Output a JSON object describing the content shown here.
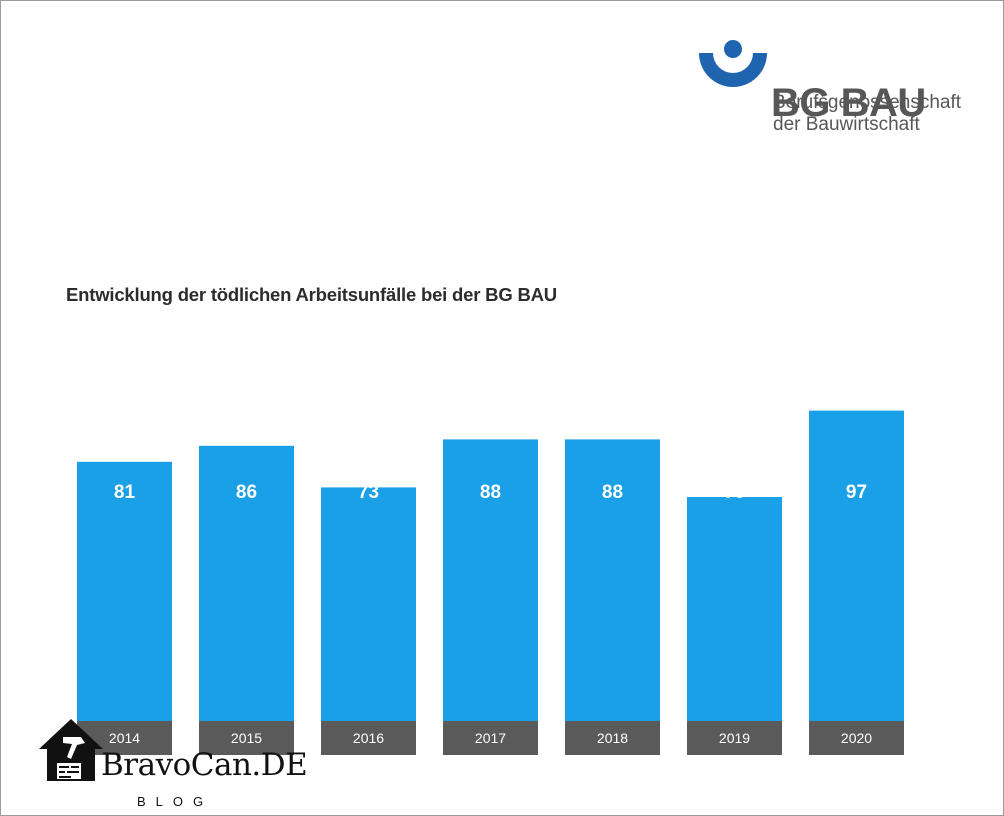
{
  "logo": {
    "brand": "BG BAU",
    "line1": "Berufsgenossenschaft",
    "line2": "der Bauwirtschaft",
    "color": "#1f64ae",
    "icon": "bg-bau-emblem-icon"
  },
  "chart_data": {
    "type": "bar",
    "title": "Entwicklung der tödlichen Arbeitsunfälle bei der BG BAU",
    "xlabel": "",
    "ylabel": "",
    "categories": [
      "2014",
      "2015",
      "2016",
      "2017",
      "2018",
      "2019",
      "2020"
    ],
    "values": [
      81,
      86,
      73,
      88,
      88,
      70,
      97
    ],
    "bar_color": "#1aa0e6",
    "category_band_color": "#5a5a5a",
    "data_labels": true,
    "grid": false,
    "legend": "none"
  },
  "watermark": {
    "text": "BravoCan.DE",
    "subtext": "BLOG",
    "icon": "house-hammer-icon"
  }
}
